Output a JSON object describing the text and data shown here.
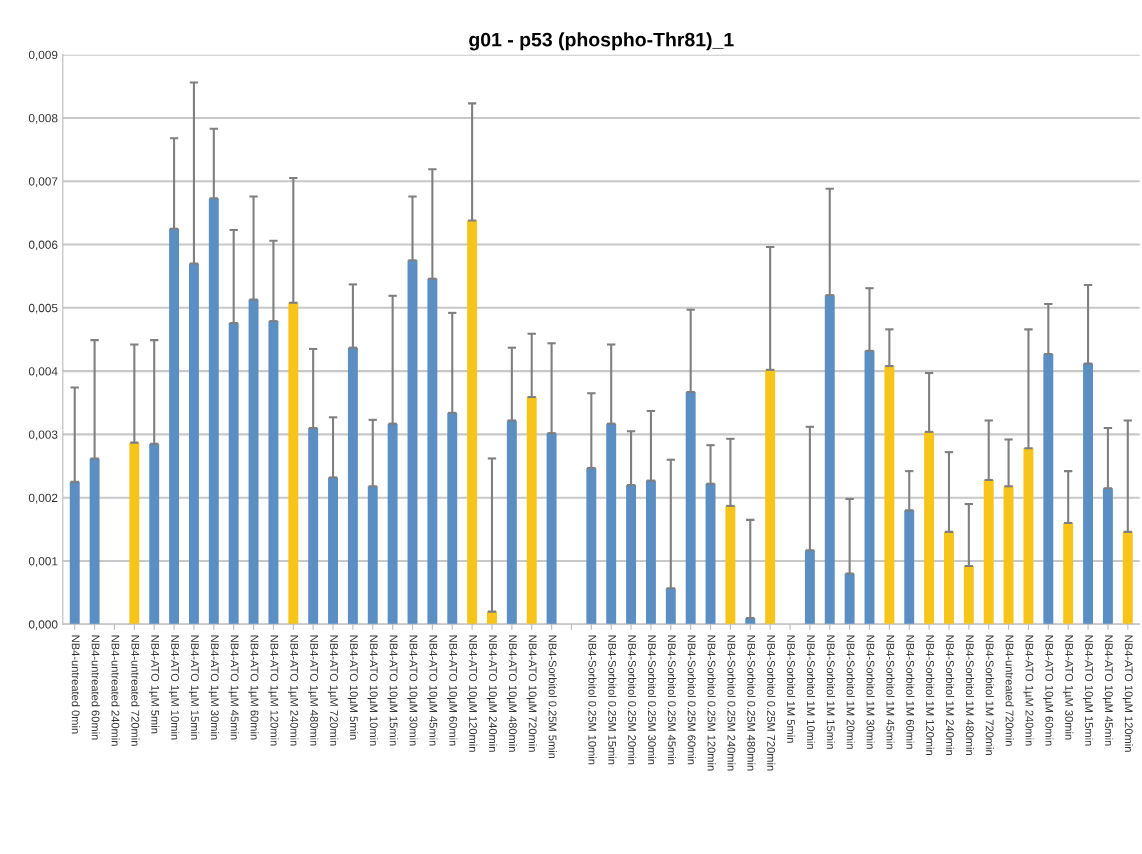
{
  "chart_data": {
    "type": "bar",
    "title": "g01 - p53 (phospho-Thr81)_1",
    "categories": [
      "NB4-untreated 0min",
      "NB4-untreated 60min",
      "NB4-untreated 240min",
      "NB4-untreated 720min",
      "NB4-ATO 1µM 5min",
      "NB4-ATO 1µM 10min",
      "NB4-ATO 1µM 15min",
      "NB4-ATO 1µM 30min",
      "NB4-ATO 1µM 45min",
      "NB4-ATO 1µM 60min",
      "NB4-ATO 1µM 120min",
      "NB4-ATO 1µM 240min",
      "NB4-ATO 1µM 480min",
      "NB4-ATO 1µM 720min",
      "NB4-ATO 10µM 5min",
      "NB4-ATO 10µM 10min",
      "NB4-ATO 10µM 15min",
      "NB4-ATO 10µM 30min",
      "NB4-ATO 10µM 45min",
      "NB4-ATO 10µM 60min",
      "NB4-ATO 10µM 120min",
      "NB4-ATO 10µM 240min",
      "NB4-ATO 10µM 480min",
      "NB4-ATO 10µM 720min",
      "NB4-Sorbitol 0.25M 5min",
      null,
      "NB4-Sorbitol 0.25M 10min",
      "NB4-Sorbitol 0.25M 15min",
      "NB4-Sorbitol 0.25M 20min",
      "NB4-Sorbitol 0.25M 30min",
      "NB4-Sorbitol 0.25M 45min",
      "NB4-Sorbitol 0.25M 60min",
      "NB4-Sorbitol 0.25M 120min",
      "NB4-Sorbitol 0.25M 240min",
      "NB4-Sorbitol 0.25M 480min",
      "NB4-Sorbitol 0.25M 720min",
      "NB4-Sorbitol 1M 5min",
      "NB4-Sorbitol 1M 10min",
      "NB4-Sorbitol 1M 15min",
      "NB4-Sorbitol 1M 20min",
      "NB4-Sorbitol 1M 30min",
      "NB4-Sorbitol 1M 45min",
      "NB4-Sorbitol 1M 60min",
      "NB4-Sorbitol 1M 120min",
      "NB4-Sorbitol 1M 240min",
      "NB4-Sorbitol 1M 480min",
      "NB4-Sorbitol 1M 720min",
      "NB4-untreated 720min",
      "NB4-ATO 1µM 240min",
      "NB4-ATO 10µM 60min",
      "NB4-ATO 1µM 30min",
      "NB4-ATO 10µM 15min",
      "NB4-ATO 10µM 45min",
      "NB4-ATO 10µM 120min"
    ],
    "values": [
      0.00225,
      0.00262,
      null,
      0.00287,
      0.00285,
      0.00625,
      0.0057,
      0.00673,
      0.00476,
      0.00513,
      0.00479,
      0.00508,
      0.0031,
      0.00232,
      0.00437,
      0.00218,
      0.00317,
      0.00575,
      0.00546,
      0.00334,
      0.00638,
      0.0002,
      0.00322,
      0.00359,
      0.00302,
      null,
      0.00247,
      0.00317,
      0.0022,
      0.00227,
      0.00057,
      0.00367,
      0.00222,
      0.00187,
      0.0001,
      0.00402,
      null,
      0.00117,
      0.0052,
      0.0008,
      0.00432,
      0.00408,
      0.0018,
      0.00304,
      0.00146,
      0.00092,
      0.00228,
      0.00218,
      0.00278,
      0.00427,
      0.0016,
      0.00412,
      0.00215,
      0.00146
    ],
    "errors": [
      [
        0.00225,
        0.00374
      ],
      [
        0.00262,
        0.00449
      ],
      null,
      [
        0.00287,
        0.00442
      ],
      [
        0.00285,
        0.00449
      ],
      [
        0.00625,
        0.00768
      ],
      [
        0.0057,
        0.00856
      ],
      [
        0.00673,
        0.00783
      ],
      [
        0.00476,
        0.00623
      ],
      [
        0.00513,
        0.00676
      ],
      [
        0.00479,
        0.00606
      ],
      [
        0.00508,
        0.00705
      ],
      [
        0.0031,
        0.00435
      ],
      [
        0.00232,
        0.00327
      ],
      [
        0.00437,
        0.00537
      ],
      [
        0.00218,
        0.00323
      ],
      [
        0.00317,
        0.00519
      ],
      [
        0.00575,
        0.00676
      ],
      [
        0.00546,
        0.00719
      ],
      [
        0.00334,
        0.00492
      ],
      [
        0.00638,
        0.00823
      ],
      [
        0.0002,
        0.00262
      ],
      [
        0.00322,
        0.00437
      ],
      [
        0.00359,
        0.00459
      ],
      [
        0.00302,
        0.00444
      ],
      null,
      [
        0.00247,
        0.00365
      ],
      [
        0.00317,
        0.00442
      ],
      [
        0.0022,
        0.00305
      ],
      [
        0.00227,
        0.00337
      ],
      [
        0.00057,
        0.0026
      ],
      [
        0.00367,
        0.00497
      ],
      [
        0.00222,
        0.00283
      ],
      [
        0.00187,
        0.00293
      ],
      [
        0.0001,
        0.00165
      ],
      [
        0.00402,
        0.00596
      ],
      null,
      [
        0.00117,
        0.00312
      ],
      [
        0.0052,
        0.00688
      ],
      [
        0.0008,
        0.00198
      ],
      [
        0.00432,
        0.00531
      ],
      [
        0.00408,
        0.00466
      ],
      [
        0.0018,
        0.00242
      ],
      [
        0.00304,
        0.00397
      ],
      [
        0.00146,
        0.00272
      ],
      [
        0.00092,
        0.0019
      ],
      [
        0.00228,
        0.00322
      ],
      [
        0.00218,
        0.00292
      ],
      [
        0.00278,
        0.00466
      ],
      [
        0.00427,
        0.00506
      ],
      [
        0.0016,
        0.00242
      ],
      [
        0.00412,
        0.00536
      ],
      [
        0.00215,
        0.0031
      ],
      [
        0.00146,
        0.00322
      ]
    ],
    "colors": [
      "#5b8fc4",
      "#5b8fc4",
      "#5b8fc4",
      "#f7c41a",
      "#5b8fc4",
      "#5b8fc4",
      "#5b8fc4",
      "#5b8fc4",
      "#5b8fc4",
      "#5b8fc4",
      "#5b8fc4",
      "#f7c41a",
      "#5b8fc4",
      "#5b8fc4",
      "#5b8fc4",
      "#5b8fc4",
      "#5b8fc4",
      "#5b8fc4",
      "#5b8fc4",
      "#5b8fc4",
      "#f7c41a",
      "#f7c41a",
      "#5b8fc4",
      "#f7c41a",
      "#5b8fc4",
      "#5b8fc4",
      "#5b8fc4",
      "#5b8fc4",
      "#5b8fc4",
      "#5b8fc4",
      "#5b8fc4",
      "#5b8fc4",
      "#5b8fc4",
      "#f7c41a",
      "#5b8fc4",
      "#f7c41a",
      "#5b8fc4",
      "#5b8fc4",
      "#5b8fc4",
      "#5b8fc4",
      "#5b8fc4",
      "#f7c41a",
      "#5b8fc4",
      "#f7c41a",
      "#f7c41a",
      "#f7c41a",
      "#f7c41a",
      "#f7c41a",
      "#f7c41a",
      "#5b8fc4",
      "#f7c41a",
      "#5b8fc4",
      "#5b8fc4",
      "#f7c41a"
    ],
    "ylim": [
      0,
      0.009
    ],
    "yticks": [
      {
        "value": 0,
        "label": "0,000"
      },
      {
        "value": 0.001,
        "label": "0,001"
      },
      {
        "value": 0.002,
        "label": "0,002"
      },
      {
        "value": 0.003,
        "label": "0,003"
      },
      {
        "value": 0.004,
        "label": "0,004"
      },
      {
        "value": 0.005,
        "label": "0,005"
      },
      {
        "value": 0.006,
        "label": "0,006"
      },
      {
        "value": 0.007,
        "label": "0,007"
      },
      {
        "value": 0.008,
        "label": "0,008"
      },
      {
        "value": 0.009,
        "label": "0,009"
      }
    ],
    "grid": "y"
  }
}
